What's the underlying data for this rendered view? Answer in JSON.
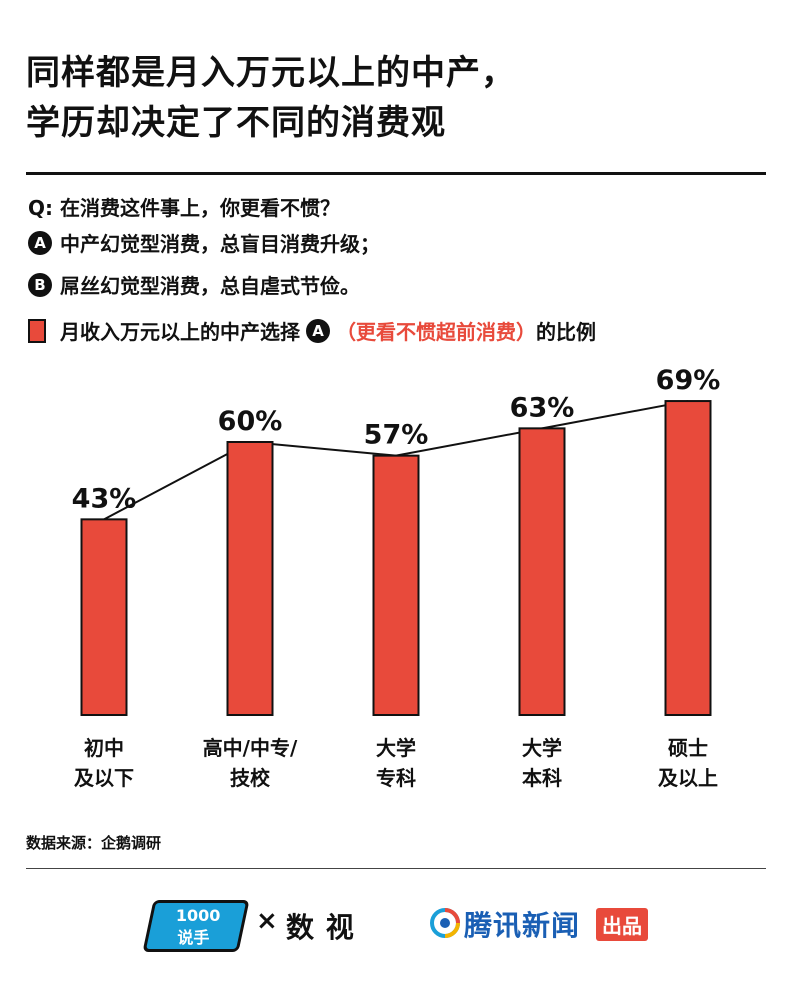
{
  "title_line1": "同样都是月入万元以上的中产，",
  "title_line2": "学历却决定了不同的消费观",
  "question": "Q: 在消费这件事上，你更看不惯？",
  "option_a_badge": "A",
  "option_a": "中产幻觉型消费，总盲目消费升级；",
  "option_b_badge": "B",
  "option_b": "屌丝幻觉型消费，总自虐式节俭。",
  "legend": {
    "part1": "月收入万元以上的中产选择",
    "badge": "A",
    "part2": "（更看不惯超前消费）",
    "part3": "的比例"
  },
  "colors": {
    "bar": "#e84a3b",
    "line": "#111111",
    "accent": "#e84a3b"
  },
  "chart_data": {
    "type": "bar",
    "categories": [
      "初中\n及以下",
      "高中/中专/\n技校",
      "大学\n专科",
      "大学\n本科",
      "硕士\n及以上"
    ],
    "values": [
      43,
      60,
      57,
      63,
      69
    ],
    "value_labels": [
      "43%",
      "60%",
      "57%",
      "63%",
      "69%"
    ],
    "overlay": "line connecting bar tops",
    "title": "",
    "xlabel": "",
    "ylabel": "",
    "ylim": [
      0,
      100
    ],
    "grid": false
  },
  "source": "数据来源：企鹅调研",
  "footer": {
    "logo_a_line1": "1000",
    "logo_a_line2": "说手",
    "times": "×",
    "logo_b": "数 视",
    "logo_c": "腾讯新闻",
    "logo_c_badge": "出品"
  }
}
